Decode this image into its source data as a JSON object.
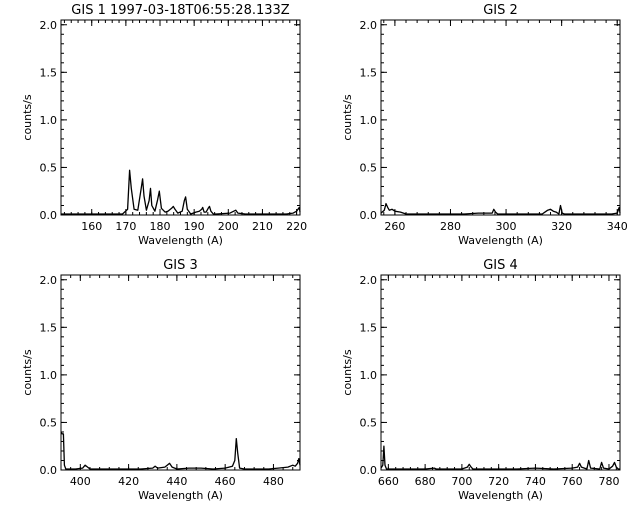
{
  "chart_data": [
    {
      "type": "line",
      "title": "GIS 1  1997-03-18T06:55:28.133Z",
      "xlabel": "Wavelength (A)",
      "ylabel": "counts/s",
      "xlim": [
        151,
        221
      ],
      "ylim": [
        0,
        2.05
      ],
      "xticks": [
        160,
        170,
        180,
        190,
        200,
        210,
        220
      ],
      "xtick_labels": [
        "160",
        "170",
        "180",
        "190",
        "200",
        "210",
        "220"
      ],
      "yticks": [
        0,
        0.5,
        1,
        1.5,
        2
      ],
      "ytick_labels": [
        "0.0",
        "0.5",
        "1.0",
        "1.5",
        "2.0"
      ],
      "color": "#000000",
      "x": [
        151,
        165,
        169,
        170.5,
        171.1,
        171.6,
        172.4,
        173.5,
        174.5,
        174.9,
        175.3,
        176,
        176.8,
        177.2,
        177.6,
        178.5,
        179.3,
        179.8,
        180.4,
        181.5,
        182.3,
        183.4,
        183.9,
        184.4,
        185.2,
        186.5,
        187.1,
        187.5,
        188,
        189,
        190.5,
        191.5,
        192.2,
        192.5,
        192.9,
        193.5,
        194.1,
        194.5,
        194.9,
        195.6,
        196.5,
        200.5,
        202.2,
        202.8,
        205,
        210,
        215,
        217,
        219,
        220,
        220.8,
        221
      ],
      "y": [
        0.01,
        0.01,
        0.01,
        0.06,
        0.47,
        0.28,
        0.06,
        0.05,
        0.28,
        0.38,
        0.2,
        0.05,
        0.15,
        0.28,
        0.1,
        0.04,
        0.16,
        0.25,
        0.07,
        0.03,
        0.04,
        0.07,
        0.09,
        0.06,
        0.02,
        0.04,
        0.15,
        0.19,
        0.06,
        0.01,
        0.03,
        0.04,
        0.06,
        0.08,
        0.03,
        0.03,
        0.07,
        0.09,
        0.04,
        0.01,
        0.01,
        0.02,
        0.05,
        0.02,
        0.01,
        0.01,
        0.01,
        0.01,
        0.02,
        0.04,
        0.08,
        0.03
      ]
    },
    {
      "type": "line",
      "title": "GIS 2",
      "xlabel": "Wavelength (A)",
      "ylabel": "counts/s",
      "xlim": [
        255,
        341
      ],
      "ylim": [
        0,
        2.05
      ],
      "xticks": [
        260,
        280,
        300,
        320,
        340
      ],
      "xtick_labels": [
        "260",
        "280",
        "300",
        "320",
        "340"
      ],
      "yticks": [
        0,
        0.5,
        1,
        1.5,
        2
      ],
      "ytick_labels": [
        "0.0",
        "0.5",
        "1.0",
        "1.5",
        "2.0"
      ],
      "color": "#000000",
      "x": [
        255,
        256.2,
        256.8,
        257.4,
        258,
        259,
        260,
        262,
        264,
        266,
        270,
        275,
        280,
        285,
        290,
        295,
        295.6,
        296.2,
        297,
        300,
        305,
        310,
        313,
        314,
        315,
        316,
        317,
        318,
        319,
        319.6,
        320.2,
        321,
        325,
        330,
        335,
        338,
        340,
        340.7,
        341
      ],
      "y": [
        0.02,
        0.05,
        0.12,
        0.08,
        0.05,
        0.06,
        0.04,
        0.03,
        0.01,
        0.01,
        0.01,
        0.01,
        0.01,
        0.01,
        0.02,
        0.02,
        0.06,
        0.03,
        0.01,
        0.01,
        0.01,
        0.01,
        0.01,
        0.03,
        0.05,
        0.06,
        0.04,
        0.03,
        0.01,
        0.1,
        0.02,
        0.01,
        0.01,
        0.01,
        0.01,
        0.01,
        0.02,
        0.08,
        0.02
      ]
    },
    {
      "type": "line",
      "title": "GIS 3",
      "xlabel": "Wavelength (A)",
      "ylabel": "counts/s",
      "xlim": [
        392,
        491
      ],
      "ylim": [
        0,
        2.05
      ],
      "xticks": [
        400,
        420,
        440,
        460,
        480
      ],
      "xtick_labels": [
        "400",
        "420",
        "440",
        "460",
        "480"
      ],
      "yticks": [
        0,
        0.5,
        1,
        1.5,
        2
      ],
      "ytick_labels": [
        "0.0",
        "0.5",
        "1.0",
        "1.5",
        "2.0"
      ],
      "color": "#000000",
      "x": [
        392,
        392.5,
        393,
        393.4,
        394,
        395,
        398,
        401,
        402,
        403,
        404,
        406,
        410,
        420,
        425,
        430,
        431,
        432,
        435,
        436,
        437,
        438,
        440,
        445,
        450,
        455,
        460,
        463,
        464,
        464.6,
        465.2,
        466,
        468,
        472,
        478,
        482,
        486,
        488,
        489,
        490,
        490.5,
        491
      ],
      "y": [
        0.4,
        0.38,
        0.38,
        0.05,
        0.01,
        0.01,
        0.01,
        0.02,
        0.05,
        0.03,
        0.01,
        0.01,
        0.01,
        0.01,
        0.01,
        0.02,
        0.04,
        0.02,
        0.03,
        0.05,
        0.07,
        0.03,
        0.01,
        0.02,
        0.02,
        0.01,
        0.02,
        0.04,
        0.1,
        0.33,
        0.18,
        0.02,
        0.01,
        0.01,
        0.01,
        0.02,
        0.03,
        0.05,
        0.04,
        0.07,
        0.12,
        0.05
      ]
    },
    {
      "type": "line",
      "title": "GIS 4",
      "xlabel": "Wavelength (A)",
      "ylabel": "counts/s",
      "xlim": [
        656,
        786
      ],
      "ylim": [
        0,
        2.05
      ],
      "xticks": [
        660,
        680,
        700,
        720,
        740,
        760,
        780
      ],
      "xtick_labels": [
        "660",
        "680",
        "700",
        "720",
        "740",
        "760",
        "780"
      ],
      "yticks": [
        0,
        0.5,
        1,
        1.5,
        2
      ],
      "ytick_labels": [
        "0.0",
        "0.5",
        "1.0",
        "1.5",
        "2.0"
      ],
      "color": "#000000",
      "x": [
        656,
        657,
        657.6,
        658.2,
        659,
        660,
        665,
        670,
        680,
        685,
        686,
        690,
        700,
        703,
        704,
        705,
        706,
        710,
        720,
        730,
        740,
        750,
        760,
        763,
        764,
        765,
        768,
        769,
        770,
        775,
        776,
        777,
        780,
        782,
        783,
        784,
        785,
        786
      ],
      "y": [
        0.02,
        0.05,
        0.25,
        0.05,
        0.01,
        0.01,
        0.01,
        0.01,
        0.01,
        0.02,
        0.01,
        0.01,
        0.01,
        0.03,
        0.06,
        0.03,
        0.01,
        0.01,
        0.01,
        0.01,
        0.02,
        0.01,
        0.02,
        0.03,
        0.07,
        0.03,
        0.01,
        0.1,
        0.02,
        0.01,
        0.08,
        0.02,
        0.01,
        0.04,
        0.08,
        0.03,
        0.01,
        0.01
      ]
    }
  ]
}
